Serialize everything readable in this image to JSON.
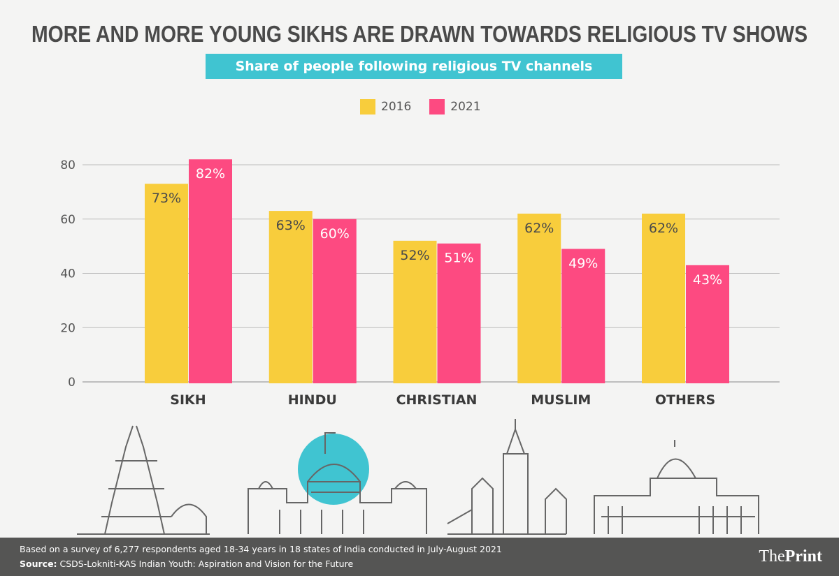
{
  "chart_data": {
    "type": "bar",
    "title": "MORE AND MORE YOUNG SIKHS ARE DRAWN TOWARDS RELIGIOUS TV SHOWS",
    "subtitle": "Share of people following religious TV channels",
    "categories": [
      "SIKH",
      "HINDU",
      "CHRISTIAN",
      "MUSLIM",
      "OTHERS"
    ],
    "series": [
      {
        "name": "2016",
        "color": "#f8cd3c",
        "values": [
          73,
          63,
          52,
          62,
          62
        ],
        "labels": [
          "73%",
          "63%",
          "52%",
          "62%",
          "62%"
        ]
      },
      {
        "name": "2021",
        "color": "#fd4a81",
        "values": [
          82,
          60,
          51,
          49,
          43
        ],
        "labels": [
          "82%",
          "60%",
          "51%",
          "49%",
          "43%"
        ]
      }
    ],
    "yticks": [
      0,
      20,
      40,
      60,
      80
    ],
    "ylim": [
      0,
      80
    ],
    "grid": true,
    "legend": "top-center",
    "xlabel": "",
    "ylabel": ""
  },
  "footer": {
    "note": "Based on a survey of 6,277 respondents aged 18-34 years in 18 states of India conducted in July-August 2021",
    "source_label": "Source:",
    "source": " CSDS-Lokniti-KAS Indian Youth: Aspiration and Vision for the Future",
    "logo": "ThePrint"
  }
}
